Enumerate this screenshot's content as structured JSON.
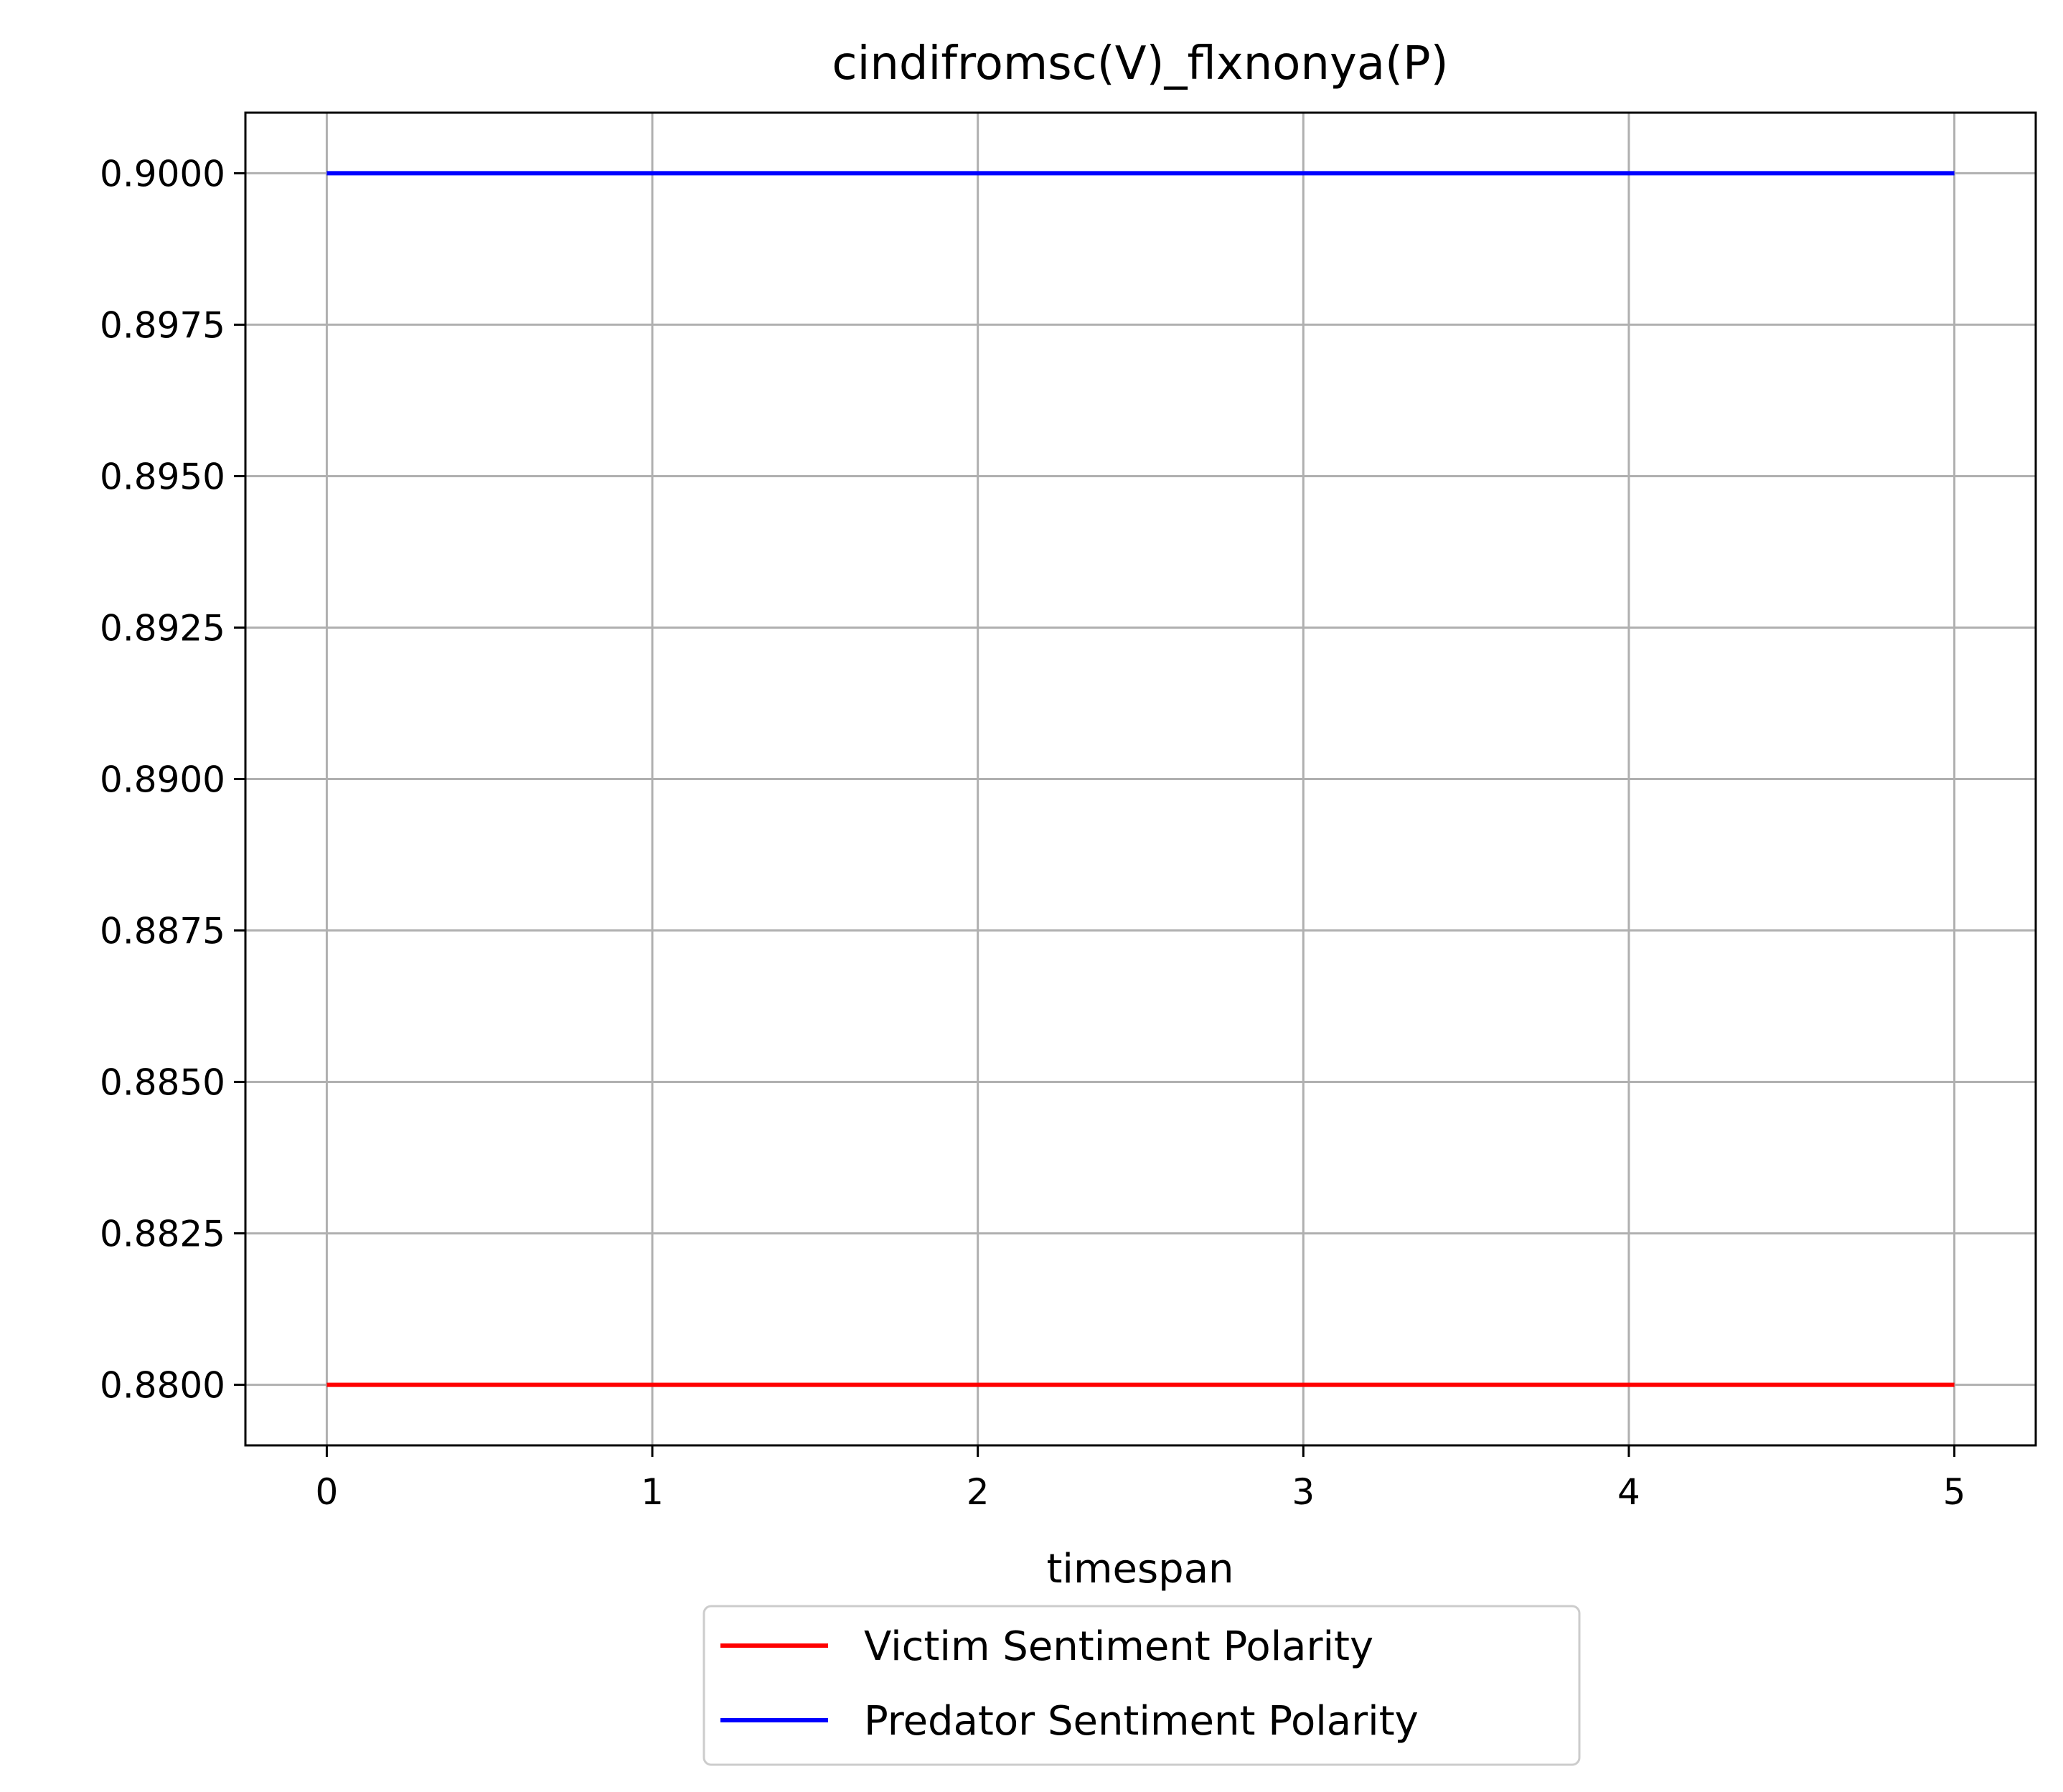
{
  "chart_data": {
    "type": "line",
    "title": "cindifromsc(V)_flxnonya(P)",
    "xlabel": "timespan",
    "ylabel": "",
    "x": [
      0,
      1,
      2,
      3,
      4,
      5
    ],
    "xticks": [
      0,
      1,
      2,
      3,
      4,
      5
    ],
    "xtick_labels": [
      "0",
      "1",
      "2",
      "3",
      "4",
      "5"
    ],
    "xlim": [
      -0.25,
      5.25
    ],
    "ylim": [
      0.879,
      0.901
    ],
    "yticks": [
      0.88,
      0.8825,
      0.885,
      0.8875,
      0.89,
      0.8925,
      0.895,
      0.8975,
      0.9
    ],
    "ytick_labels": [
      "0.8800",
      "0.8825",
      "0.8850",
      "0.8875",
      "0.8900",
      "0.8925",
      "0.8950",
      "0.8975",
      "0.9000"
    ],
    "grid": true,
    "legend_position": "bottom-center, below plot",
    "series": [
      {
        "name": "Victim Sentiment Polarity",
        "color": "#ff0000",
        "values": [
          0.88,
          0.88,
          0.88,
          0.88,
          0.88,
          0.88
        ]
      },
      {
        "name": "Predator Sentiment Polarity",
        "color": "#0000ff",
        "values": [
          0.9,
          0.9,
          0.9,
          0.9,
          0.9,
          0.9
        ]
      }
    ]
  }
}
